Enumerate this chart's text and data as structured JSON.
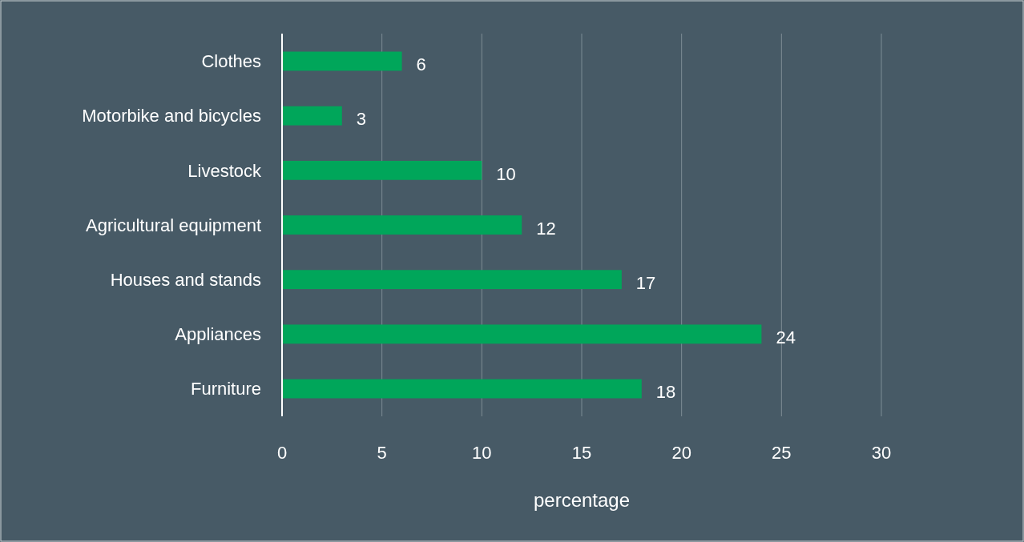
{
  "chart_data": {
    "type": "bar",
    "orientation": "horizontal",
    "xlabel": "percentage",
    "categories": [
      "Clothes",
      "Motorbike and bicycles",
      "Livestock",
      "Agricultural equipment",
      "Houses and stands",
      "Appliances",
      "Furniture"
    ],
    "values": [
      6,
      3,
      10,
      12,
      17,
      24,
      18
    ],
    "color": "#00a65a",
    "xlim": [
      0,
      30
    ],
    "xticks": [
      0,
      5,
      10,
      15,
      20,
      25,
      30
    ],
    "grid": "x",
    "data_labels": true
  }
}
